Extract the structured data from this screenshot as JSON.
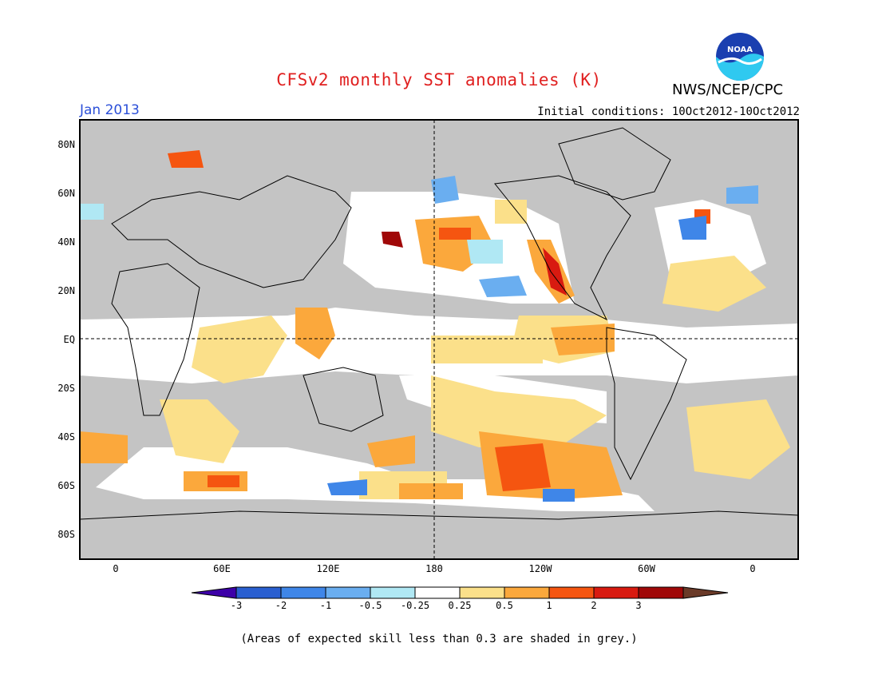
{
  "header": {
    "title": "CFSv2 monthly SST anomalies (K)",
    "agency": "NWS/NCEP/CPC",
    "month": "Jan 2013",
    "initial_conditions": "Initial conditions: 10Oct2012-10Oct2012",
    "logo_text": "NOAA"
  },
  "map": {
    "lat_labels": [
      "80N",
      "60N",
      "40N",
      "20N",
      "EQ",
      "20S",
      "40S",
      "60S",
      "80S"
    ],
    "lon_labels": [
      "0",
      "60E",
      "120E",
      "180",
      "120W",
      "60W",
      "0"
    ],
    "background_color": "#c4c4c4",
    "land_color": "#c4c4c4"
  },
  "colorbar": {
    "tick_labels": [
      "-3",
      "-2",
      "-1",
      "-0.5",
      "-0.25",
      "0.25",
      "0.5",
      "1",
      "2",
      "3"
    ],
    "colors": [
      "#3d00a8",
      "#2a5fd0",
      "#3f86e8",
      "#6aaef0",
      "#b0e8f4",
      "#ffffff",
      "#fbe08a",
      "#fba83c",
      "#f55510",
      "#d81a10",
      "#a00808",
      "#6a3a28"
    ]
  },
  "footnote": "(Areas of expected skill less than 0.3 are shaded in grey.)"
}
